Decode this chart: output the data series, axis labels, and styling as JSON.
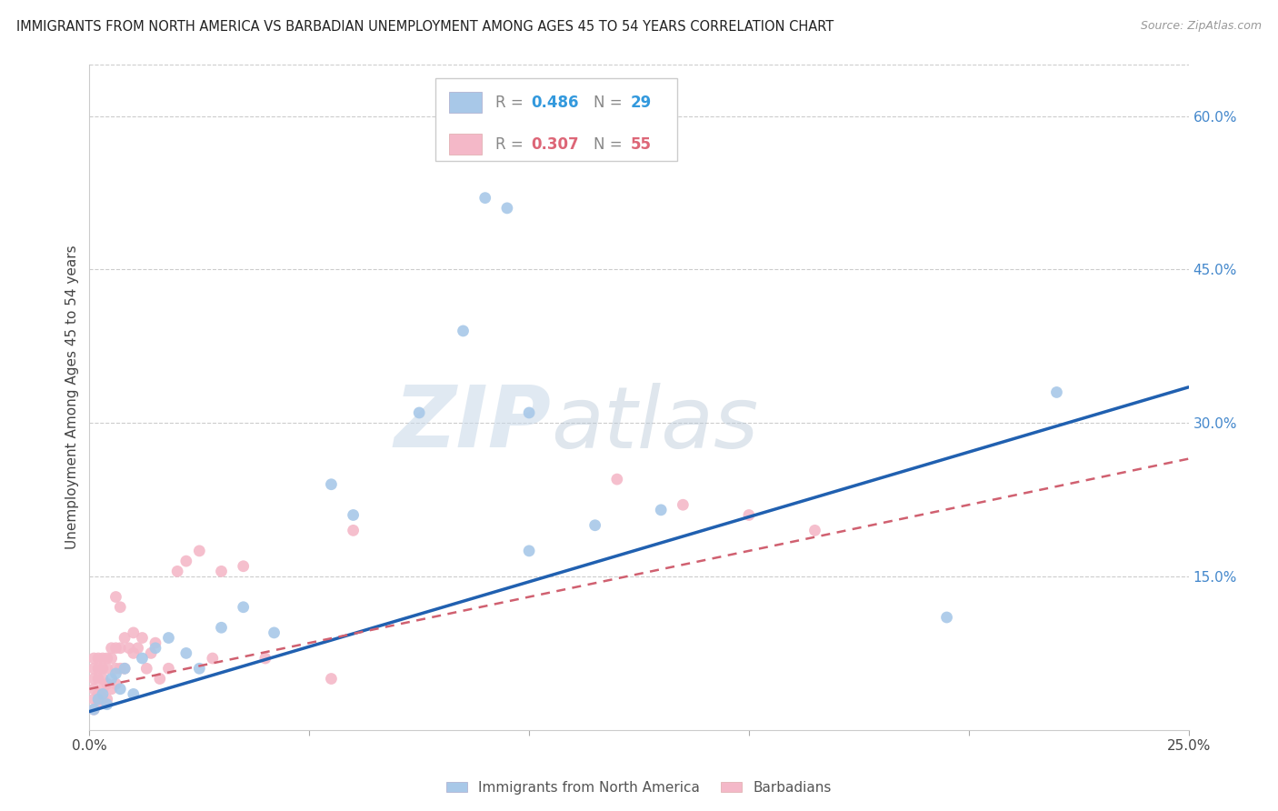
{
  "title": "IMMIGRANTS FROM NORTH AMERICA VS BARBADIAN UNEMPLOYMENT AMONG AGES 45 TO 54 YEARS CORRELATION CHART",
  "source": "Source: ZipAtlas.com",
  "ylabel": "Unemployment Among Ages 45 to 54 years",
  "xlim": [
    0.0,
    0.25
  ],
  "ylim": [
    0.0,
    0.65
  ],
  "xticks": [
    0.0,
    0.05,
    0.1,
    0.15,
    0.2,
    0.25
  ],
  "xticklabels": [
    "0.0%",
    "",
    "",
    "",
    "",
    "25.0%"
  ],
  "yticks_right": [
    0.0,
    0.15,
    0.3,
    0.45,
    0.6
  ],
  "ytick_right_labels": [
    "",
    "15.0%",
    "30.0%",
    "45.0%",
    "60.0%"
  ],
  "blue_color": "#a8c8e8",
  "pink_color": "#f4b8c8",
  "blue_line_color": "#2060b0",
  "pink_line_color": "#d06070",
  "legend_R_blue": "0.486",
  "legend_N_blue": "29",
  "legend_R_pink": "0.307",
  "legend_N_pink": "55",
  "watermark_zip": "ZIP",
  "watermark_atlas": "atlas",
  "blue_x": [
    0.001,
    0.002,
    0.003,
    0.004,
    0.005,
    0.006,
    0.007,
    0.008,
    0.01,
    0.012,
    0.015,
    0.018,
    0.022,
    0.025,
    0.03,
    0.035,
    0.042,
    0.055,
    0.06,
    0.075,
    0.085,
    0.09,
    0.095,
    0.1,
    0.1,
    0.115,
    0.13,
    0.195,
    0.22
  ],
  "blue_y": [
    0.02,
    0.03,
    0.035,
    0.025,
    0.05,
    0.055,
    0.04,
    0.06,
    0.035,
    0.07,
    0.08,
    0.09,
    0.075,
    0.06,
    0.1,
    0.12,
    0.095,
    0.24,
    0.21,
    0.31,
    0.39,
    0.52,
    0.51,
    0.31,
    0.175,
    0.2,
    0.215,
    0.11,
    0.33
  ],
  "pink_x": [
    0.001,
    0.001,
    0.001,
    0.001,
    0.001,
    0.001,
    0.002,
    0.002,
    0.002,
    0.002,
    0.002,
    0.003,
    0.003,
    0.003,
    0.003,
    0.003,
    0.004,
    0.004,
    0.004,
    0.004,
    0.005,
    0.005,
    0.005,
    0.006,
    0.006,
    0.006,
    0.006,
    0.007,
    0.007,
    0.007,
    0.008,
    0.008,
    0.009,
    0.01,
    0.01,
    0.011,
    0.012,
    0.013,
    0.014,
    0.015,
    0.016,
    0.018,
    0.02,
    0.022,
    0.025,
    0.028,
    0.03,
    0.035,
    0.04,
    0.055,
    0.06,
    0.12,
    0.135,
    0.15,
    0.165
  ],
  "pink_y": [
    0.02,
    0.03,
    0.04,
    0.05,
    0.06,
    0.07,
    0.025,
    0.035,
    0.05,
    0.06,
    0.07,
    0.03,
    0.04,
    0.05,
    0.06,
    0.07,
    0.03,
    0.045,
    0.06,
    0.07,
    0.04,
    0.07,
    0.08,
    0.045,
    0.06,
    0.08,
    0.13,
    0.06,
    0.08,
    0.12,
    0.06,
    0.09,
    0.08,
    0.075,
    0.095,
    0.08,
    0.09,
    0.06,
    0.075,
    0.085,
    0.05,
    0.06,
    0.155,
    0.165,
    0.175,
    0.07,
    0.155,
    0.16,
    0.07,
    0.05,
    0.195,
    0.245,
    0.22,
    0.21,
    0.195
  ],
  "blue_line_x0": 0.0,
  "blue_line_y0": 0.018,
  "blue_line_x1": 0.25,
  "blue_line_y1": 0.335,
  "pink_line_x0": 0.0,
  "pink_line_y0": 0.04,
  "pink_line_x1": 0.25,
  "pink_line_y1": 0.265
}
